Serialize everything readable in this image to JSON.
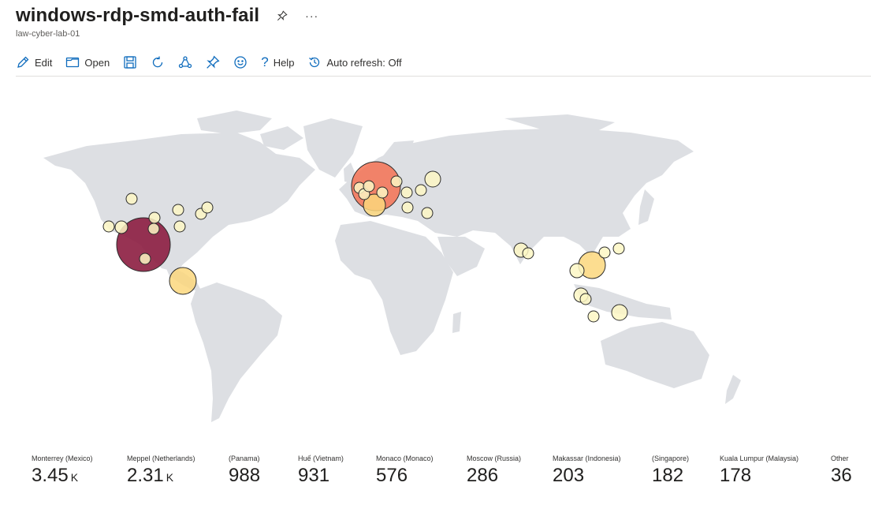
{
  "header": {
    "title": "windows-rdp-smd-auth-fail",
    "subtitle": "law-cyber-lab-01",
    "more_label": "···"
  },
  "toolbar": {
    "edit_label": "Edit",
    "open_label": "Open",
    "help_label": "Help",
    "auto_refresh_label": "Auto refresh: Off"
  },
  "colors": {
    "land": "#dddfe3",
    "bubble_low": "#fdf7c4",
    "bubble_mid": "#fbd77d",
    "bubble_high": "#f47253",
    "bubble_max": "#8c1d40",
    "outline": "#2b2b2b"
  },
  "legend": [
    {
      "name": "Monterrey (Mexico)",
      "value": "3.45",
      "unit": "K"
    },
    {
      "name": "Meppel (Netherlands)",
      "value": "2.31",
      "unit": "K"
    },
    {
      "name": "(Panama)",
      "value": "988",
      "unit": ""
    },
    {
      "name": "Huế (Vietnam)",
      "value": "931",
      "unit": ""
    },
    {
      "name": "Monaco (Monaco)",
      "value": "576",
      "unit": ""
    },
    {
      "name": "Moscow (Russia)",
      "value": "286",
      "unit": ""
    },
    {
      "name": "Makassar (Indonesia)",
      "value": "203",
      "unit": ""
    },
    {
      "name": "(Singapore)",
      "value": "182",
      "unit": ""
    },
    {
      "name": "Kuala Lumpur (Malaysia)",
      "value": "178",
      "unit": ""
    },
    {
      "name": "Other",
      "value": "36",
      "unit": ""
    }
  ]
}
